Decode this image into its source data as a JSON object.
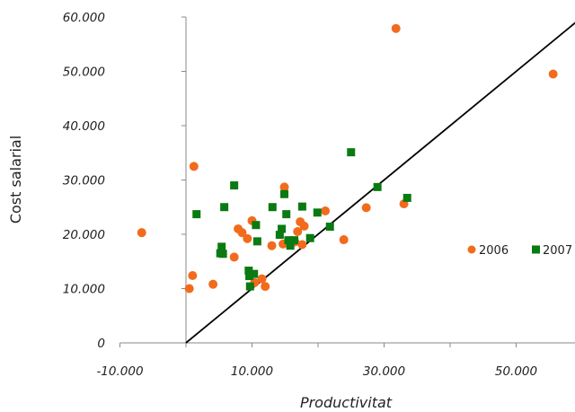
{
  "chart_data": {
    "type": "scatter",
    "xlabel": "Productivitat",
    "ylabel": "Cost salarial",
    "xlim": [
      -10000,
      59000
    ],
    "ylim": [
      0,
      60000
    ],
    "x_ticks": [
      -10000,
      10000,
      30000,
      50000
    ],
    "x_tick_labels": [
      "-10.000",
      "10.000",
      "30.000",
      "50.000"
    ],
    "y_ticks": [
      0,
      10000,
      20000,
      30000,
      40000,
      50000,
      60000
    ],
    "y_tick_labels": [
      "0",
      "10.000",
      "20.000",
      "30.000",
      "40.000",
      "50.000",
      "60.000"
    ],
    "grid": false,
    "legend_position": "right",
    "reference_line": {
      "from": [
        0,
        0
      ],
      "to": [
        59000,
        59000
      ],
      "color": "#000000"
    },
    "series": [
      {
        "name": "2006",
        "marker": "circle",
        "color": "#F26B1D",
        "points": [
          [
            -6700,
            20300
          ],
          [
            500,
            10000
          ],
          [
            1000,
            12400
          ],
          [
            1200,
            32500
          ],
          [
            4100,
            10800
          ],
          [
            7300,
            15800
          ],
          [
            7900,
            21000
          ],
          [
            8500,
            20300
          ],
          [
            9300,
            19200
          ],
          [
            10000,
            22500
          ],
          [
            10400,
            11100
          ],
          [
            11500,
            11800
          ],
          [
            12000,
            10400
          ],
          [
            13000,
            17900
          ],
          [
            14700,
            18200
          ],
          [
            14900,
            28700
          ],
          [
            16500,
            18600
          ],
          [
            16900,
            20500
          ],
          [
            17300,
            22300
          ],
          [
            17600,
            18100
          ],
          [
            17900,
            21500
          ],
          [
            21100,
            24300
          ],
          [
            23900,
            19000
          ],
          [
            27300,
            24900
          ],
          [
            31800,
            57900
          ],
          [
            33000,
            25600
          ],
          [
            55600,
            49500
          ]
        ]
      },
      {
        "name": "2007",
        "marker": "square",
        "color": "#0A7A12",
        "points": [
          [
            1600,
            23700
          ],
          [
            5200,
            16500
          ],
          [
            5400,
            17700
          ],
          [
            5600,
            16400
          ],
          [
            5800,
            25000
          ],
          [
            7300,
            29000
          ],
          [
            9500,
            13300
          ],
          [
            9600,
            12300
          ],
          [
            9700,
            10400
          ],
          [
            10300,
            12700
          ],
          [
            10600,
            21700
          ],
          [
            10800,
            18700
          ],
          [
            13100,
            25000
          ],
          [
            14200,
            19900
          ],
          [
            14500,
            21000
          ],
          [
            14900,
            27400
          ],
          [
            15200,
            23700
          ],
          [
            15500,
            18900
          ],
          [
            15800,
            17900
          ],
          [
            16400,
            18900
          ],
          [
            17600,
            25100
          ],
          [
            18800,
            19300
          ],
          [
            19900,
            24000
          ],
          [
            21800,
            21400
          ],
          [
            25000,
            35100
          ],
          [
            29000,
            28700
          ],
          [
            33500,
            26700
          ]
        ]
      }
    ]
  }
}
